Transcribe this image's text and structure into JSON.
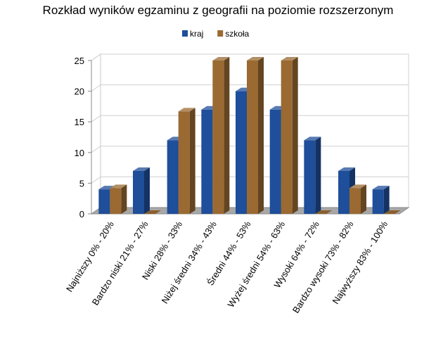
{
  "chart_data": {
    "type": "bar",
    "title": "Rozkład wyników egzaminu z geografii na poziomie rozszerzonym",
    "xlabel": "",
    "ylabel": "",
    "ylim": [
      0,
      25
    ],
    "yticks": [
      0,
      5,
      10,
      15,
      20,
      25
    ],
    "grid": true,
    "legend_position": "top",
    "categories": [
      "Najniższy 0% - 20%",
      "Bardzo niski 21% - 27%",
      "Niski 28% - 33%",
      "Niżej średni 34% - 43%",
      "Średni 44% - 53%",
      "Wyżej średni 54% - 63%",
      "Wysoki 64% - 72%",
      "Bardzo wysoki 73% - 82%",
      "Najwyższy 83% - 100%"
    ],
    "series": [
      {
        "name": "kraj",
        "color": "#1F4E9A",
        "values": [
          4,
          7,
          12,
          17,
          20,
          17,
          12,
          7,
          4
        ]
      },
      {
        "name": "szkoła",
        "color": "#9A6A32",
        "values": [
          4.2,
          0,
          16.7,
          25,
          25,
          25,
          0,
          4.2,
          0
        ]
      }
    ]
  }
}
